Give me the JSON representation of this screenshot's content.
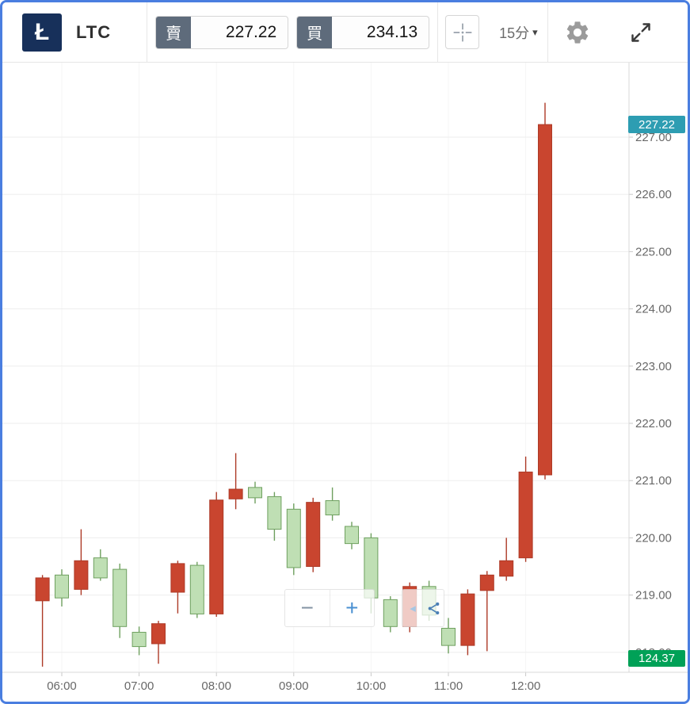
{
  "toolbar": {
    "logo_glyph": "Ł",
    "symbol": "LTC",
    "sell": {
      "label": "賣",
      "value": "227.22"
    },
    "buy": {
      "label": "買",
      "value": "234.13"
    },
    "interval": {
      "label": "15分",
      "caret": "▾"
    },
    "icons": [
      "crosshair-icon",
      "gear-icon",
      "expand-icon"
    ]
  },
  "floating_toolbar": {
    "zoom_out_label": "−",
    "zoom_in_label": "+",
    "prev_label": "◂",
    "share_icon": "share-nodes-icon"
  },
  "price_badges": {
    "current": {
      "text": "227.22",
      "color": "#2d9db2"
    },
    "secondary": {
      "text": "124.37",
      "color": "#00a157"
    }
  },
  "colors": {
    "window_border": "#4a7ee0",
    "logo_navy": "#17305a",
    "tag_slate": "#5e6b7b"
  },
  "chart_data": {
    "type": "candlestick",
    "symbol": "LTC",
    "interval": "15分",
    "y_ticks": [
      "227.00",
      "226.00",
      "225.00",
      "224.00",
      "223.00",
      "222.00",
      "221.00",
      "220.00",
      "219.00",
      "218.00"
    ],
    "x_ticks": [
      "06:00",
      "07:00",
      "08:00",
      "09:00",
      "10:00",
      "11:00",
      "12:00"
    ],
    "ylim": [
      217.65,
      228.3
    ],
    "grid": true,
    "colors": {
      "up_fill": "#c9452f",
      "up_border": "#ad3a27",
      "down_fill": "#bfdfb4",
      "down_border": "#6fa05f"
    },
    "candles": [
      {
        "t": "05:45",
        "o": 218.9,
        "h": 219.35,
        "l": 217.75,
        "c": 219.3
      },
      {
        "t": "06:00",
        "o": 219.35,
        "h": 219.45,
        "l": 218.8,
        "c": 218.95
      },
      {
        "t": "06:15",
        "o": 219.1,
        "h": 220.15,
        "l": 219.0,
        "c": 219.6
      },
      {
        "t": "06:30",
        "o": 219.65,
        "h": 219.8,
        "l": 219.25,
        "c": 219.3
      },
      {
        "t": "06:45",
        "o": 219.45,
        "h": 219.55,
        "l": 218.25,
        "c": 218.45
      },
      {
        "t": "07:00",
        "o": 218.35,
        "h": 218.45,
        "l": 217.95,
        "c": 218.1
      },
      {
        "t": "07:15",
        "o": 218.15,
        "h": 218.55,
        "l": 217.8,
        "c": 218.5
      },
      {
        "t": "07:30",
        "o": 219.05,
        "h": 219.6,
        "l": 218.68,
        "c": 219.55
      },
      {
        "t": "07:45",
        "o": 219.52,
        "h": 219.58,
        "l": 218.6,
        "c": 218.67
      },
      {
        "t": "08:00",
        "o": 218.67,
        "h": 220.8,
        "l": 218.62,
        "c": 220.66
      },
      {
        "t": "08:15",
        "o": 220.68,
        "h": 221.48,
        "l": 220.5,
        "c": 220.85
      },
      {
        "t": "08:30",
        "o": 220.88,
        "h": 220.98,
        "l": 220.6,
        "c": 220.7
      },
      {
        "t": "08:45",
        "o": 220.72,
        "h": 220.8,
        "l": 219.95,
        "c": 220.15
      },
      {
        "t": "09:00",
        "o": 220.5,
        "h": 220.6,
        "l": 219.35,
        "c": 219.48
      },
      {
        "t": "09:15",
        "o": 219.5,
        "h": 220.7,
        "l": 219.4,
        "c": 220.62
      },
      {
        "t": "09:30",
        "o": 220.65,
        "h": 220.88,
        "l": 220.3,
        "c": 220.4
      },
      {
        "t": "09:45",
        "o": 220.2,
        "h": 220.28,
        "l": 219.8,
        "c": 219.9
      },
      {
        "t": "10:00",
        "o": 220.0,
        "h": 220.08,
        "l": 218.68,
        "c": 218.95
      },
      {
        "t": "10:15",
        "o": 218.92,
        "h": 218.98,
        "l": 218.35,
        "c": 218.45
      },
      {
        "t": "10:30",
        "o": 218.45,
        "h": 219.22,
        "l": 218.35,
        "c": 219.15
      },
      {
        "t": "10:45",
        "o": 219.15,
        "h": 219.25,
        "l": 218.55,
        "c": 218.65
      },
      {
        "t": "11:00",
        "o": 218.42,
        "h": 218.6,
        "l": 217.98,
        "c": 218.12
      },
      {
        "t": "11:15",
        "o": 218.12,
        "h": 219.1,
        "l": 217.95,
        "c": 219.02
      },
      {
        "t": "11:30",
        "o": 219.08,
        "h": 219.42,
        "l": 218.02,
        "c": 219.35
      },
      {
        "t": "11:45",
        "o": 219.33,
        "h": 220.0,
        "l": 219.25,
        "c": 219.6
      },
      {
        "t": "12:00",
        "o": 219.65,
        "h": 221.42,
        "l": 219.58,
        "c": 221.15
      },
      {
        "t": "12:15",
        "o": 221.1,
        "h": 227.6,
        "l": 221.02,
        "c": 227.22
      }
    ]
  }
}
